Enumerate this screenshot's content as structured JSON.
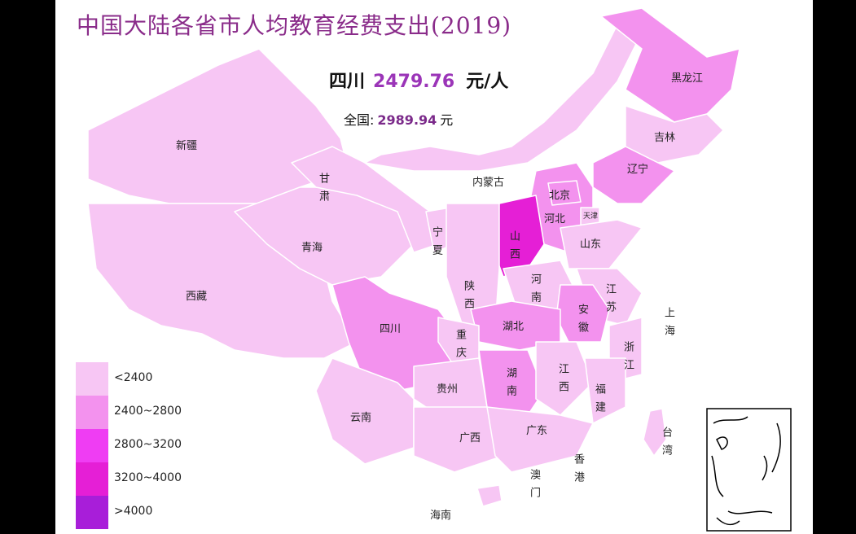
{
  "title": "中国大陆各省市人均教育经费支出(2019)",
  "highlight": {
    "province": "四川",
    "value": "2479.76",
    "unit": "元/人"
  },
  "national": {
    "label": "全国:",
    "value": "2989.94",
    "unit": "元"
  },
  "colors": {
    "lt2400": "#f7c6f4",
    "2400_2800": "#f392ee",
    "2800_3200": "#ef3df3",
    "3200_4000": "#e51fd6",
    "gt4000": "#a81ed9"
  },
  "legend": [
    {
      "label": "<2400",
      "color": "#f7c6f4"
    },
    {
      "label": "2400~2800",
      "color": "#f392ee"
    },
    {
      "label": "2800~3200",
      "color": "#ef3df3"
    },
    {
      "label": "3200~4000",
      "color": "#e51fd6"
    },
    {
      "label": ">4000",
      "color": "#a81ed9"
    }
  ],
  "provinces": {
    "xinjiang": "新疆",
    "xizang": "西藏",
    "qinghai": "青海",
    "gansu": "甘肃",
    "neimenggu": "内蒙古",
    "heilongjiang": "黑龙江",
    "jilin": "吉林",
    "liaoning": "辽宁",
    "beijing": "北京",
    "tianjin": "天津",
    "hebei": "河北",
    "shanxi": "山西",
    "shandong": "山东",
    "ningxia": "宁夏",
    "shaanxi": "陕西",
    "henan": "河南",
    "jiangsu": "江苏",
    "shanghai": "上海",
    "anhui": "安徽",
    "hubei": "湖北",
    "sichuan": "四川",
    "chongqing": "重庆",
    "zhejiang": "浙江",
    "guizhou": "贵州",
    "hunan": "湖南",
    "jiangxi": "江西",
    "fujian": "福建",
    "yunnan": "云南",
    "guangxi": "广西",
    "guangdong": "广东",
    "taiwan": "台湾",
    "xianggang": "香港",
    "aomen": "澳门",
    "hainan": "海南"
  }
}
